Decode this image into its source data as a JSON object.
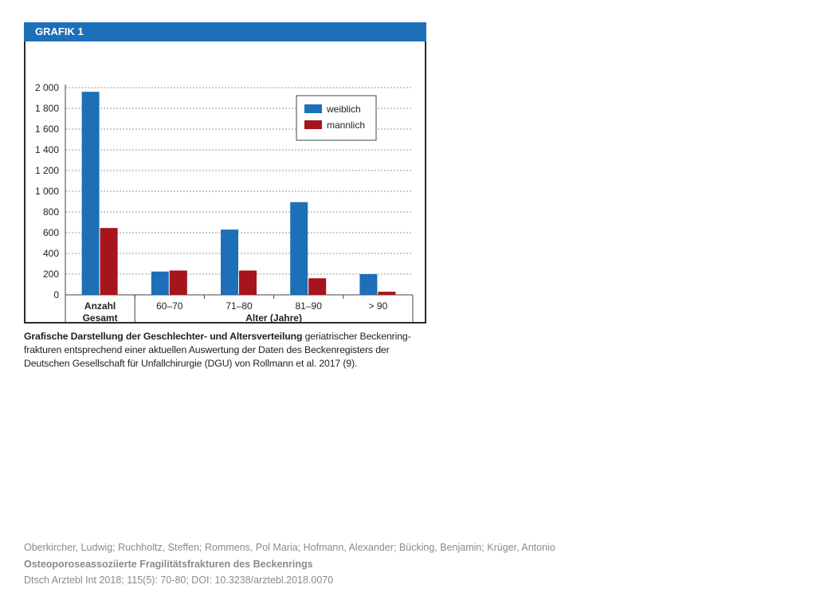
{
  "figure": {
    "label": "GRAFIK 1",
    "caption": {
      "bold": "Grafische Darstellung der Geschlechter- und Altersverteilung",
      "rest": " geriatrischer Beckenring­frakturen entsprechend einer aktuellen Auswertung der Daten des Beckenregisters der Deutschen Gesellschaft für Unfallchirurgie (DGU) von Rollmann et al. 2017 (9)."
    }
  },
  "chart_data": {
    "type": "bar",
    "categories": [
      "Anzahl Gesamt",
      "60–70",
      "71–80",
      "81–90",
      "> 90"
    ],
    "category_lines": [
      [
        "Anzahl",
        "Gesamt"
      ],
      [
        "60–70"
      ],
      [
        "71–80"
      ],
      [
        "81–90"
      ],
      [
        "> 90"
      ]
    ],
    "series": [
      {
        "name": "weiblich",
        "values": [
          1960,
          225,
          630,
          895,
          200
        ],
        "color": "#1d6fb8"
      },
      {
        "name": "mannlich",
        "values": [
          645,
          235,
          235,
          160,
          30
        ],
        "color": "#a6141c"
      }
    ],
    "title": "",
    "xlabel": "Alter (Jahre)",
    "ylabel": "",
    "ylim": [
      0,
      2000
    ],
    "yticks": [
      0,
      200,
      400,
      600,
      800,
      1000,
      1200,
      1400,
      1600,
      1800,
      2000
    ],
    "ytick_labels": [
      "0",
      "200",
      "400",
      "600",
      "800",
      "1 000",
      "1 200",
      "1 400",
      "1 600",
      "1 800",
      "2 000"
    ],
    "grid": true,
    "legend_position": "top-right"
  },
  "citation": {
    "authors": "Oberkircher, Ludwig; Ruchholtz, Steffen; Rommens, Pol Maria; Hofmann, Alexander; Bücking, Benjamin; Krüger, Antonio",
    "title": "Osteoporoseassoziierte Fragilitätsfrakturen des Beckenrings",
    "source": "Dtsch Arztebl Int 2018; 115(5): 70-80; DOI: 10.3238/arztebl.2018.0070"
  }
}
